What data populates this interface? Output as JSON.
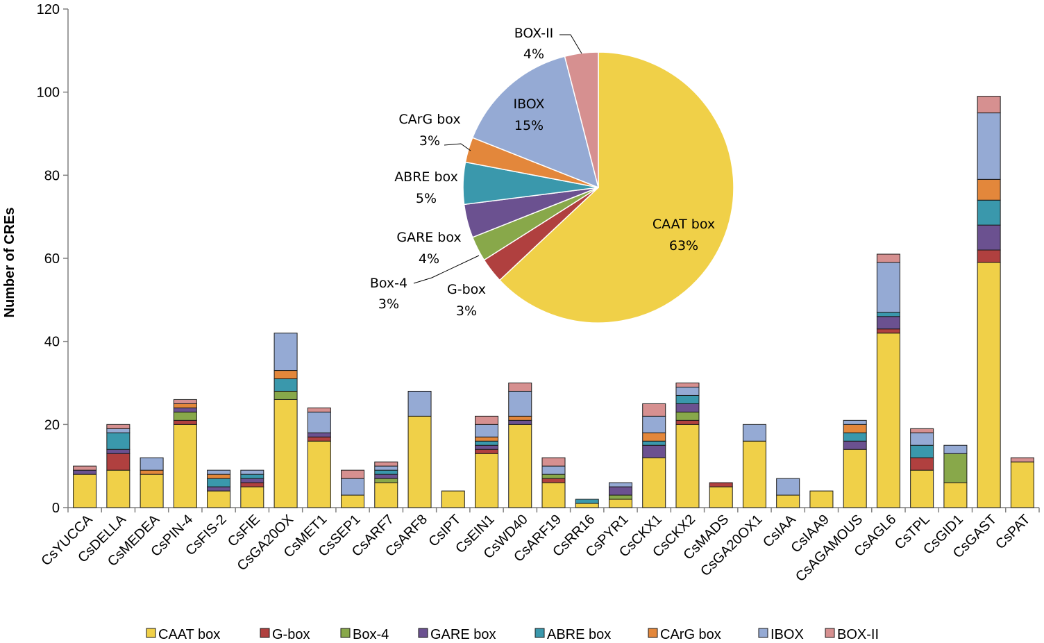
{
  "chart_data": [
    {
      "type": "bar",
      "stacked": true,
      "title": "",
      "xlabel": "",
      "ylabel": "Number of CREs",
      "ylim": [
        0,
        120
      ],
      "yticks": [
        0,
        20,
        40,
        60,
        80,
        100,
        120
      ],
      "categories": [
        "CsYUCCA",
        "CsDELLA",
        "CsMEDEA",
        "CsPIN-4",
        "CsFIS-2",
        "CsFIE",
        "CsGA20OX",
        "CsMET1",
        "CsSEP1",
        "CsARF7",
        "CsARF8",
        "CsIPT",
        "CsEIN1",
        "CsWD40",
        "CsARF19",
        "CsRR16",
        "CsPYR1",
        "CsCKX1",
        "CsCKX2",
        "CsMADS",
        "CsGA20OX1",
        "CsIAA",
        "CsIAA9",
        "CsAGAMOUS",
        "CsAGL6",
        "CsTPL",
        "CsGID1",
        "CsGAST",
        "CsPAT"
      ],
      "series": [
        {
          "name": "CAAT box",
          "color": "#F0D048",
          "values": [
            8,
            9,
            8,
            20,
            4,
            5,
            26,
            16,
            3,
            6,
            22,
            4,
            13,
            20,
            6,
            1,
            2,
            12,
            20,
            5,
            16,
            3,
            4,
            14,
            42,
            9,
            6,
            59,
            11
          ]
        },
        {
          "name": "G-box",
          "color": "#B0403F",
          "values": [
            0,
            4,
            0,
            1,
            0,
            1,
            0,
            1,
            0,
            0,
            0,
            0,
            1,
            0,
            1,
            0,
            0,
            0,
            1,
            1,
            0,
            0,
            0,
            0,
            1,
            3,
            0,
            3,
            0
          ]
        },
        {
          "name": "Box-4",
          "color": "#88A84A",
          "values": [
            0,
            0,
            0,
            2,
            0,
            0,
            2,
            0,
            0,
            1,
            0,
            0,
            0,
            0,
            1,
            0,
            1,
            0,
            2,
            0,
            0,
            0,
            0,
            0,
            0,
            0,
            7,
            0,
            0
          ]
        },
        {
          "name": "GARE box",
          "color": "#6B5190",
          "values": [
            1,
            1,
            0,
            1,
            1,
            1,
            0,
            1,
            0,
            1,
            0,
            0,
            1,
            1,
            0,
            0,
            2,
            3,
            2,
            0,
            0,
            0,
            0,
            2,
            3,
            0,
            0,
            6,
            0
          ]
        },
        {
          "name": "ABRE box",
          "color": "#3A98AC",
          "values": [
            0,
            4,
            0,
            0,
            2,
            1,
            3,
            0,
            0,
            1,
            0,
            0,
            1,
            0,
            0,
            1,
            0,
            1,
            2,
            0,
            0,
            0,
            0,
            2,
            1,
            3,
            0,
            6,
            0
          ]
        },
        {
          "name": "CArG box",
          "color": "#E3873B",
          "values": [
            0,
            0,
            1,
            1,
            1,
            0,
            2,
            0,
            0,
            0,
            0,
            0,
            1,
            1,
            0,
            0,
            0,
            2,
            0,
            0,
            0,
            0,
            0,
            2,
            0,
            0,
            0,
            5,
            0
          ]
        },
        {
          "name": "IBOX",
          "color": "#95AAD4",
          "values": [
            0,
            1,
            3,
            0,
            1,
            1,
            9,
            5,
            4,
            1,
            6,
            0,
            3,
            6,
            2,
            0,
            1,
            4,
            2,
            0,
            4,
            4,
            0,
            1,
            12,
            3,
            2,
            16,
            0
          ]
        },
        {
          "name": "BOX-II",
          "color": "#D69090",
          "values": [
            1,
            1,
            0,
            1,
            0,
            0,
            0,
            1,
            2,
            1,
            0,
            0,
            2,
            2,
            2,
            0,
            0,
            3,
            1,
            0,
            0,
            0,
            0,
            0,
            2,
            1,
            0,
            4,
            1
          ]
        }
      ],
      "legend": [
        "CAAT box",
        "G-box",
        "Box-4",
        "GARE box",
        "ABRE box",
        "CArG box",
        "IBOX",
        "BOX-II"
      ],
      "legend_position": "bottom"
    },
    {
      "type": "pie",
      "title": "",
      "slices": [
        {
          "name": "CAAT box",
          "label": "CAAT box",
          "pct_label": "63%",
          "value": 63,
          "color": "#F0D048"
        },
        {
          "name": "G-box",
          "label": "G-box",
          "pct_label": "3%",
          "value": 3,
          "color": "#B0403F"
        },
        {
          "name": "Box-4",
          "label": "Box-4",
          "pct_label": "3%",
          "value": 3,
          "color": "#88A84A"
        },
        {
          "name": "GARE box",
          "label": "GARE box",
          "pct_label": "4%",
          "value": 4,
          "color": "#6B5190"
        },
        {
          "name": "ABRE box",
          "label": "ABRE box",
          "pct_label": "5%",
          "value": 5,
          "color": "#3A98AC"
        },
        {
          "name": "CArG box",
          "label": "CArG box",
          "pct_label": "3%",
          "value": 3,
          "color": "#E3873B"
        },
        {
          "name": "IBOX",
          "label": "IBOX",
          "pct_label": "15%",
          "value": 15,
          "color": "#95AAD4"
        },
        {
          "name": "BOX-II",
          "label": "BOX-II",
          "pct_label": "4%",
          "value": 4,
          "color": "#D69090"
        }
      ]
    }
  ]
}
